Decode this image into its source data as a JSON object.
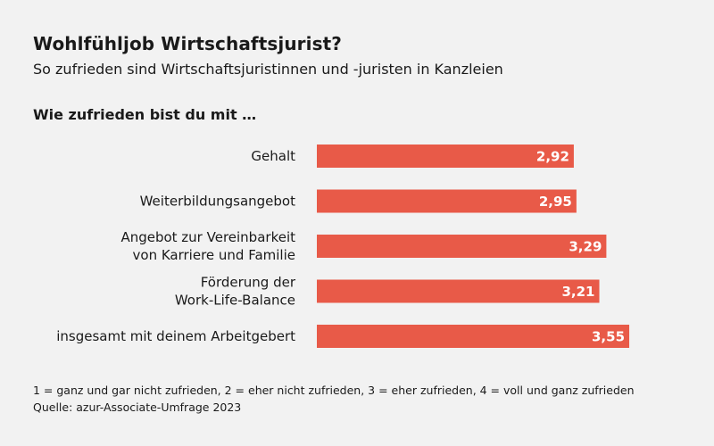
{
  "chart_data": {
    "type": "bar",
    "orientation": "horizontal",
    "title": "Wohlfühljob Wirtschaftsjurist?",
    "subtitle": "So zufrieden sind Wirtschaftsjuristinnen und -juristen in Kanzleien",
    "question": "Wie zufrieden bist du mit …",
    "categories": [
      [
        "Gehalt"
      ],
      [
        "Weiterbildungsangebot"
      ],
      [
        "Angebot zur Vereinbarkeit",
        "von Karriere und Familie"
      ],
      [
        "Förderung der",
        "Work-Life-Balance"
      ],
      [
        "insgesamt mit deinem Arbeitgebert"
      ]
    ],
    "values": [
      2.92,
      2.95,
      3.29,
      3.21,
      3.55
    ],
    "value_labels": [
      "2,92",
      "2,95",
      "3,29",
      "3,21",
      "3,55"
    ],
    "color": "#e85a48",
    "xlim": [
      0,
      4
    ]
  },
  "footnote": {
    "scale": "1 = ganz und gar nicht zufrieden, 2 = eher nicht zufrieden, 3 = eher zufrieden, 4 = voll und ganz zufrieden",
    "source": "Quelle: azur-Associate-Umfrage 2023"
  }
}
